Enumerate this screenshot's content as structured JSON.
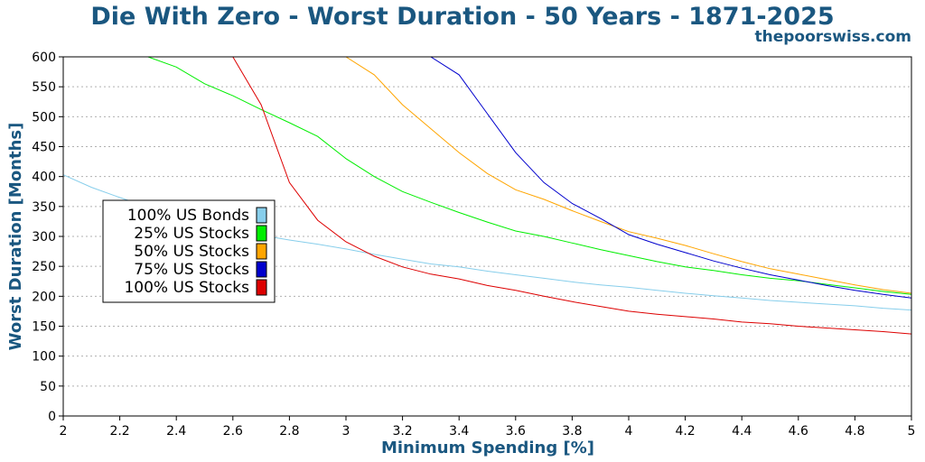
{
  "colors": {
    "title": "#1a5780",
    "grid": "#b0b0b0",
    "frame": "#000000"
  },
  "header": {
    "title": "Die With Zero - Worst Duration - 50 Years - 1871-2025",
    "site": "thepoorswiss.com"
  },
  "chart_data": {
    "type": "line",
    "xlabel": "Minimum Spending [%]",
    "ylabel": "Worst Duration [Months]",
    "xlim": [
      2,
      5
    ],
    "ylim": [
      0,
      600
    ],
    "xticks": [
      "2",
      "2.2",
      "2.4",
      "2.6",
      "2.8",
      "3",
      "3.2",
      "3.4",
      "3.6",
      "3.8",
      "4",
      "4.2",
      "4.4",
      "4.6",
      "4.8",
      "5"
    ],
    "yticks": [
      "0",
      "50",
      "100",
      "150",
      "200",
      "250",
      "300",
      "350",
      "400",
      "450",
      "500",
      "550",
      "600"
    ],
    "grid": "horizontal dotted",
    "legend_position": "middle-left",
    "x": [
      2.0,
      2.1,
      2.2,
      2.3,
      2.4,
      2.5,
      2.6,
      2.7,
      2.8,
      2.9,
      3.0,
      3.1,
      3.2,
      3.3,
      3.4,
      3.5,
      3.6,
      3.7,
      3.8,
      3.9,
      4.0,
      4.1,
      4.2,
      4.3,
      4.4,
      4.5,
      4.6,
      4.7,
      4.8,
      4.9,
      5.0
    ],
    "series": [
      {
        "name": "100% US Bonds",
        "color": "#87ceeb",
        "values": [
          403,
          382,
          365,
          349,
          335,
          322,
          311,
          302,
          294,
          287,
          279,
          270,
          262,
          254,
          249,
          242,
          236,
          230,
          224,
          219,
          215,
          210,
          205,
          201,
          197,
          193,
          190,
          187,
          184,
          180,
          177
        ]
      },
      {
        "name": "25% US Stocks",
        "color": "#00ee00",
        "values": [
          600,
          600,
          600,
          600,
          583,
          555,
          535,
          512,
          490,
          467,
          430,
          400,
          375,
          357,
          340,
          324,
          309,
          300,
          289,
          278,
          268,
          258,
          249,
          243,
          236,
          230,
          226,
          220,
          214,
          208,
          203
        ]
      },
      {
        "name": "50% US Stocks",
        "color": "#ffa500",
        "values": [
          600,
          600,
          600,
          600,
          600,
          600,
          600,
          600,
          600,
          600,
          600,
          570,
          520,
          480,
          440,
          405,
          378,
          362,
          343,
          325,
          308,
          297,
          285,
          271,
          258,
          246,
          237,
          228,
          219,
          211,
          205
        ]
      },
      {
        "name": "75% US Stocks",
        "color": "#0000cd",
        "values": [
          600,
          600,
          600,
          600,
          600,
          600,
          600,
          600,
          600,
          600,
          600,
          600,
          600,
          600,
          570,
          505,
          440,
          390,
          355,
          330,
          303,
          287,
          273,
          259,
          247,
          236,
          227,
          218,
          210,
          203,
          197
        ]
      },
      {
        "name": "100% US Stocks",
        "color": "#dd0000",
        "values": [
          600,
          600,
          600,
          600,
          600,
          600,
          600,
          520,
          390,
          327,
          291,
          267,
          249,
          237,
          229,
          218,
          210,
          200,
          191,
          183,
          175,
          170,
          166,
          162,
          157,
          154,
          150,
          147,
          144,
          141,
          137
        ]
      }
    ]
  }
}
